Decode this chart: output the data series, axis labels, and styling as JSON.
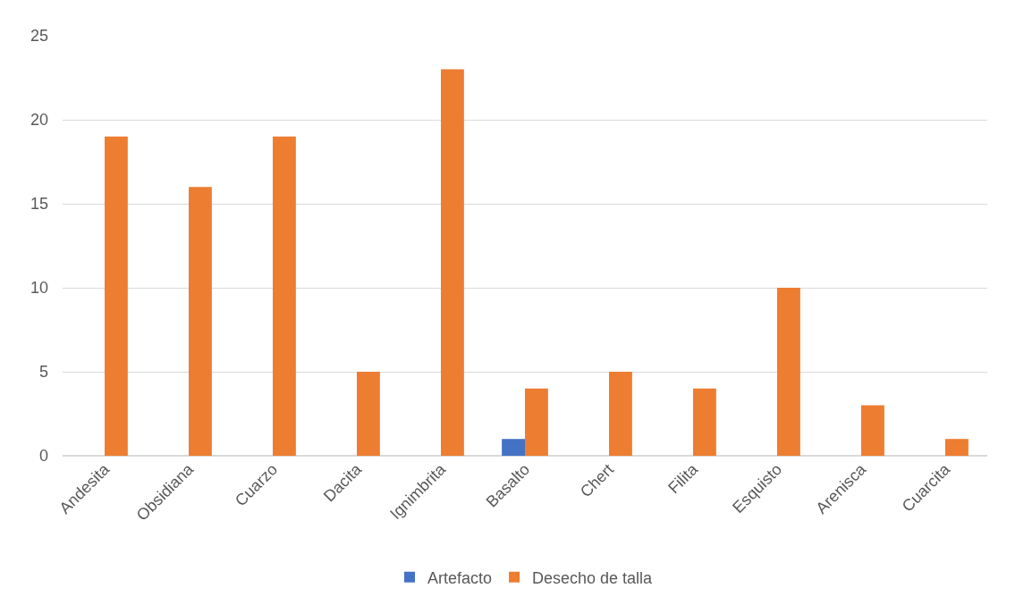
{
  "chart_data": {
    "type": "bar",
    "categories": [
      "Andesita",
      "Obsidiana",
      "Cuarzo",
      "Dacita",
      "Ignimbrita",
      "Basalto",
      "Chert",
      "Filita",
      "Esquisto",
      "Arenisca",
      "Cuarcita"
    ],
    "series": [
      {
        "name": "Artefacto",
        "color": "#4472c4",
        "values": [
          null,
          null,
          null,
          null,
          null,
          1,
          null,
          null,
          null,
          null,
          null
        ]
      },
      {
        "name": "Desecho de talla",
        "color": "#ed7d31",
        "values": [
          19,
          16,
          19,
          5,
          23,
          4,
          5,
          4,
          10,
          3,
          1
        ]
      }
    ],
    "ylim": [
      0,
      25
    ],
    "yticks": [
      0,
      5,
      10,
      15,
      20,
      25
    ],
    "grid": "y",
    "legend": "bottom"
  }
}
